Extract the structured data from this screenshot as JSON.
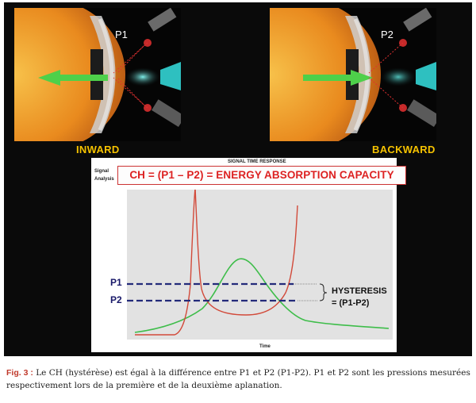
{
  "figure": {
    "panels": [
      {
        "p_label": "P1",
        "direction_label": "INWARD"
      },
      {
        "p_label": "P2",
        "direction_label": "BACKWARD"
      }
    ],
    "chart": {
      "title": "SIGNAL TIME RESPONSE",
      "y_axis_label_line1": "Signal",
      "y_axis_label_line2": "Analysis",
      "x_axis_label": "Time",
      "formula": "CH = (P1 – P2) = ENERGY ABSORPTION CAPACITY",
      "level_labels": [
        "P1",
        "P2"
      ],
      "hysteresis_label_line1": "HYSTERESIS",
      "hysteresis_label_line2": "= (P1-P2)",
      "colors": {
        "applanation_signal": "#d24a3a",
        "pressure": "#3ebd4a",
        "levels": "#232b7a"
      }
    }
  },
  "caption": {
    "label": "Fig. 3 :",
    "text": "Le CH (hystérèse) est égal à la différence entre P1 et P2 (P1-P2). P1 et P2 sont les pressions mesurées respectivement lors de la première et de la deuxième aplanation."
  }
}
